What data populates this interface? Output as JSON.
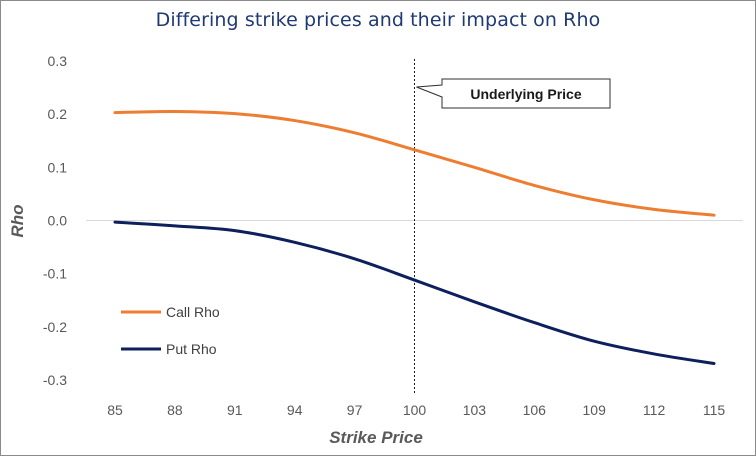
{
  "chart_data": {
    "type": "line",
    "title": "Differing strike prices and their impact on Rho",
    "xlabel": "Strike Price",
    "ylabel": "Rho",
    "x": [
      85,
      88,
      91,
      94,
      97,
      100,
      103,
      106,
      109,
      112,
      115
    ],
    "ylim": [
      -0.3,
      0.3
    ],
    "yticks": [
      "0.3",
      "0.2",
      "0.1",
      "0.0",
      "-0.1",
      "-0.2",
      "-0.3"
    ],
    "grid": "horizontal zero line only",
    "legend": "lower-left",
    "series": [
      {
        "name": "Call Rho",
        "color": "#ed7d31",
        "values": [
          0.203,
          0.205,
          0.201,
          0.188,
          0.165,
          0.133,
          0.1,
          0.066,
          0.039,
          0.021,
          0.01
        ]
      },
      {
        "name": "Put Rho",
        "color": "#0d1f5c",
        "values": [
          -0.003,
          -0.01,
          -0.019,
          -0.041,
          -0.072,
          -0.112,
          -0.153,
          -0.192,
          -0.227,
          -0.251,
          -0.269
        ]
      }
    ],
    "annotation": {
      "text": "Underlying Price",
      "x_value": 100
    }
  }
}
